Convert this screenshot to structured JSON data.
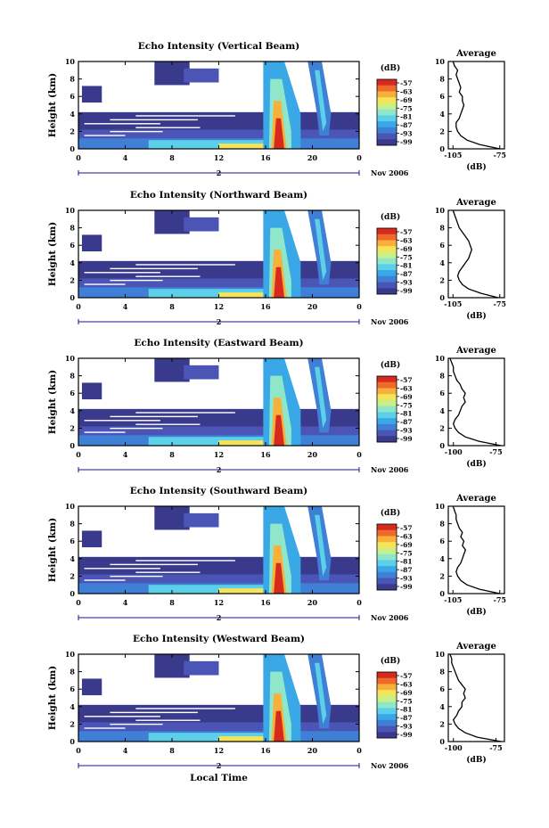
{
  "colors": {
    "scale": [
      "#3a3a8c",
      "#4b55b5",
      "#3f7fd6",
      "#3aa8e6",
      "#5cd0e8",
      "#8fe6c8",
      "#c8ef88",
      "#f5e45a",
      "#f7b03a",
      "#ef6a2a",
      "#d62a1e"
    ],
    "curve": "#000000",
    "time_axis": "#1a1a8a"
  },
  "chart_data": [
    {
      "type": "heatmap",
      "title": "Echo Intensity (Vertical Beam)",
      "ylabel": "Height (km)",
      "xlim": [
        0,
        24
      ],
      "ylim": [
        0,
        10
      ],
      "x_ticks": [
        "0",
        "4",
        "8",
        "12",
        "16",
        "20",
        "0"
      ],
      "y_ticks": [
        "0",
        "2",
        "4",
        "6",
        "8",
        "10"
      ],
      "date_marker": "2",
      "date_label": "Nov 2006",
      "colorbar_title": "(dB)",
      "colorbar_ticks": [
        "-57",
        "-63",
        "-69",
        "-75",
        "-81",
        "-87",
        "-93",
        "-99"
      ],
      "average": {
        "title": "Average",
        "xlabel": "(dB)",
        "x_ticks": [
          "-105",
          "-75"
        ],
        "xlim": [
          -108,
          -72
        ],
        "heights": [
          0,
          0.5,
          1,
          1.5,
          2,
          2.5,
          3,
          3.5,
          4,
          4.5,
          5,
          5.5,
          6,
          6.5,
          7,
          7.5,
          8,
          8.5,
          9,
          9.5,
          10
        ],
        "values": [
          -75,
          -88,
          -96,
          -100,
          -102,
          -103,
          -103,
          -101,
          -100,
          -99,
          -98,
          -99,
          -99,
          -101,
          -100,
          -101,
          -102,
          -103,
          -102,
          -104,
          -105
        ]
      }
    },
    {
      "type": "heatmap",
      "title": "Echo Intensity (Northward Beam)",
      "ylabel": "Height (km)",
      "xlim": [
        0,
        24
      ],
      "ylim": [
        0,
        10
      ],
      "x_ticks": [
        "0",
        "4",
        "8",
        "12",
        "16",
        "20",
        "0"
      ],
      "y_ticks": [
        "0",
        "2",
        "4",
        "6",
        "8",
        "10"
      ],
      "date_marker": "2",
      "date_label": "Nov 2006",
      "colorbar_title": "(dB)",
      "colorbar_ticks": [
        "-57",
        "-63",
        "-69",
        "-75",
        "-81",
        "-87",
        "-93",
        "-99"
      ],
      "average": {
        "title": "Average",
        "xlabel": "(dB)",
        "x_ticks": [
          "-105",
          "-75"
        ],
        "xlim": [
          -108,
          -72
        ],
        "heights": [
          0,
          0.5,
          1,
          1.5,
          2,
          2.5,
          3,
          3.5,
          4,
          4.5,
          5,
          5.5,
          6,
          6.5,
          7,
          7.5,
          8,
          8.5,
          9,
          9.5,
          10
        ],
        "values": [
          -76,
          -87,
          -95,
          -99,
          -101,
          -102,
          -101,
          -99,
          -97,
          -95,
          -94,
          -93,
          -94,
          -95,
          -97,
          -99,
          -101,
          -102,
          -103,
          -104,
          -105
        ]
      }
    },
    {
      "type": "heatmap",
      "title": "Echo Intensity (Eastward Beam)",
      "ylabel": "Height (km)",
      "xlim": [
        0,
        24
      ],
      "ylim": [
        0,
        10
      ],
      "x_ticks": [
        "0",
        "4",
        "8",
        "12",
        "16",
        "20",
        "0"
      ],
      "y_ticks": [
        "0",
        "2",
        "4",
        "6",
        "8",
        "10"
      ],
      "date_marker": "2",
      "date_label": "Nov 2006",
      "colorbar_title": "(dB)",
      "colorbar_ticks": [
        "-57",
        "-63",
        "-69",
        "-75",
        "-81",
        "-87",
        "-93",
        "-99"
      ],
      "average": {
        "title": "Average",
        "xlabel": "(dB)",
        "x_ticks": [
          "-100",
          "-75"
        ],
        "xlim": [
          -103,
          -70
        ],
        "heights": [
          0,
          0.5,
          1,
          1.5,
          2,
          2.5,
          3,
          3.5,
          4,
          4.5,
          5,
          5.5,
          6,
          6.5,
          7,
          7.5,
          8,
          8.5,
          9,
          9.5,
          10
        ],
        "values": [
          -72,
          -85,
          -93,
          -97,
          -99,
          -100,
          -99,
          -97,
          -96,
          -95,
          -93,
          -94,
          -93,
          -95,
          -96,
          -98,
          -99,
          -100,
          -100,
          -101,
          -102
        ]
      }
    },
    {
      "type": "heatmap",
      "title": "Echo Intensity (Southward Beam)",
      "ylabel": "Height (km)",
      "xlim": [
        0,
        24
      ],
      "ylim": [
        0,
        10
      ],
      "x_ticks": [
        "0",
        "4",
        "8",
        "12",
        "16",
        "20",
        "0"
      ],
      "y_ticks": [
        "0",
        "2",
        "4",
        "6",
        "8",
        "10"
      ],
      "date_marker": "2",
      "date_label": "Nov 2006",
      "colorbar_title": "(dB)",
      "colorbar_ticks": [
        "-57",
        "-63",
        "-69",
        "-75",
        "-81",
        "-87",
        "-93",
        "-99"
      ],
      "average": {
        "title": "Average",
        "xlabel": "(dB)",
        "x_ticks": [
          "-105",
          "-75"
        ],
        "xlim": [
          -108,
          -72
        ],
        "heights": [
          0,
          0.5,
          1,
          1.5,
          2,
          2.5,
          3,
          3.5,
          4,
          4.5,
          5,
          5.5,
          6,
          6.5,
          7,
          7.5,
          8,
          8.5,
          9,
          9.5,
          10
        ],
        "values": [
          -75,
          -88,
          -96,
          -100,
          -102,
          -103,
          -102,
          -100,
          -99,
          -98,
          -97,
          -99,
          -98,
          -100,
          -99,
          -101,
          -102,
          -103,
          -103,
          -104,
          -105
        ]
      }
    },
    {
      "type": "heatmap",
      "title": "Echo Intensity (Westward Beam)",
      "ylabel": "Height (km)",
      "xlabel": "Local Time",
      "xlim": [
        0,
        24
      ],
      "ylim": [
        0,
        10
      ],
      "x_ticks": [
        "0",
        "4",
        "8",
        "12",
        "16",
        "20",
        "0"
      ],
      "y_ticks": [
        "0",
        "2",
        "4",
        "6",
        "8",
        "10"
      ],
      "date_marker": "2",
      "date_label": "Nov 2006",
      "colorbar_title": "(dB)",
      "colorbar_ticks": [
        "-57",
        "-63",
        "-69",
        "-75",
        "-81",
        "-87",
        "-93",
        "-99"
      ],
      "average": {
        "title": "Average",
        "xlabel": "(dB)",
        "x_ticks": [
          "-100",
          "-75"
        ],
        "xlim": [
          -103,
          -70
        ],
        "heights": [
          0,
          0.5,
          1,
          1.5,
          2,
          2.5,
          3,
          3.5,
          4,
          4.5,
          5,
          5.5,
          6,
          6.5,
          7,
          7.5,
          8,
          8.5,
          9,
          9.5,
          10
        ],
        "values": [
          -72,
          -86,
          -93,
          -97,
          -99,
          -100,
          -98,
          -97,
          -95,
          -95,
          -93,
          -94,
          -93,
          -95,
          -97,
          -98,
          -99,
          -100,
          -101,
          -101,
          -102
        ]
      }
    }
  ]
}
